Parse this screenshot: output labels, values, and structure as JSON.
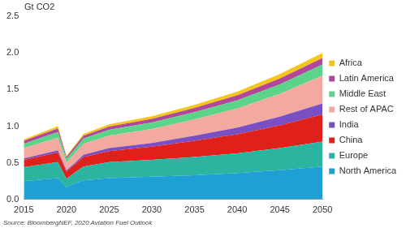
{
  "chart_data": {
    "type": "area",
    "stacked": true,
    "y_label": "Gt CO2",
    "source": "Source: BloombergNEF, 2020 Aviation Fuel Outlook",
    "x": [
      2015,
      2019,
      2020,
      2021,
      2022,
      2025,
      2030,
      2035,
      2040,
      2045,
      2050
    ],
    "series": [
      {
        "name": "North America",
        "color": "#1ea0d4",
        "values": [
          0.25,
          0.29,
          0.17,
          0.22,
          0.26,
          0.29,
          0.31,
          0.33,
          0.36,
          0.4,
          0.45
        ]
      },
      {
        "name": "Europe",
        "color": "#2bb5a0",
        "values": [
          0.19,
          0.22,
          0.11,
          0.15,
          0.19,
          0.22,
          0.23,
          0.25,
          0.27,
          0.3,
          0.34
        ]
      },
      {
        "name": "China",
        "color": "#e0201b",
        "values": [
          0.1,
          0.13,
          0.1,
          0.11,
          0.13,
          0.15,
          0.18,
          0.22,
          0.26,
          0.31,
          0.37
        ]
      },
      {
        "name": "India",
        "color": "#7b4fc4",
        "values": [
          0.02,
          0.03,
          0.02,
          0.02,
          0.03,
          0.04,
          0.05,
          0.07,
          0.09,
          0.12,
          0.15
        ]
      },
      {
        "name": "Rest of APAC",
        "color": "#f4a9a0",
        "values": [
          0.14,
          0.17,
          0.1,
          0.13,
          0.15,
          0.17,
          0.19,
          0.22,
          0.26,
          0.31,
          0.38
        ]
      },
      {
        "name": "Middle East",
        "color": "#5bd48a",
        "values": [
          0.06,
          0.08,
          0.05,
          0.06,
          0.07,
          0.08,
          0.09,
          0.1,
          0.11,
          0.13,
          0.15
        ]
      },
      {
        "name": "Latin America",
        "color": "#b0479a",
        "values": [
          0.04,
          0.05,
          0.03,
          0.035,
          0.04,
          0.045,
          0.05,
          0.06,
          0.07,
          0.08,
          0.09
        ]
      },
      {
        "name": "Africa",
        "color": "#f5c518",
        "values": [
          0.02,
          0.03,
          0.015,
          0.02,
          0.025,
          0.03,
          0.035,
          0.04,
          0.05,
          0.06,
          0.07
        ]
      }
    ],
    "xlim": [
      2015,
      2050
    ],
    "xticks": [
      2015,
      2020,
      2025,
      2030,
      2035,
      2040,
      2045,
      2050
    ],
    "ylim": [
      0,
      2.5
    ],
    "yticks": [
      {
        "value": 0,
        "label": "0.0"
      },
      {
        "value": 0.5,
        "label": "0.5"
      },
      {
        "value": 1,
        "label": "1.0"
      },
      {
        "value": 1.5,
        "label": "1.5"
      },
      {
        "value": 2,
        "label": "2.0"
      },
      {
        "value": 2.5,
        "label": "2.5"
      }
    ],
    "grid": false,
    "legend": "right"
  }
}
